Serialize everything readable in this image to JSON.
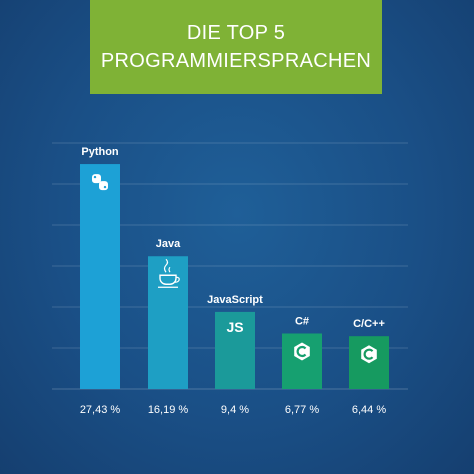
{
  "title": {
    "line1": "DIE TOP 5",
    "line2": "PROGRAMMIERSPRACHEN"
  },
  "chart_data": {
    "type": "bar",
    "categories": [
      "Python",
      "Java",
      "JavaScript",
      "C#",
      "C/C++"
    ],
    "values": [
      27.43,
      16.19,
      9.4,
      6.77,
      6.44
    ],
    "value_labels": [
      "27,43 %",
      "16,19 %",
      "9,4 %",
      "6,77 %",
      "6,44 %"
    ],
    "colors": [
      "#1da1d6",
      "#1e9fc4",
      "#1b9a9a",
      "#16a070",
      "#169a60"
    ],
    "icons": [
      "python-icon",
      "java-icon",
      "js-icon",
      "csharp-icon",
      "cpp-icon"
    ],
    "icon_text": [
      "",
      "",
      "JS",
      "",
      ""
    ],
    "ylim": [
      0,
      30
    ],
    "grid": true,
    "accent": "#7fb236"
  }
}
